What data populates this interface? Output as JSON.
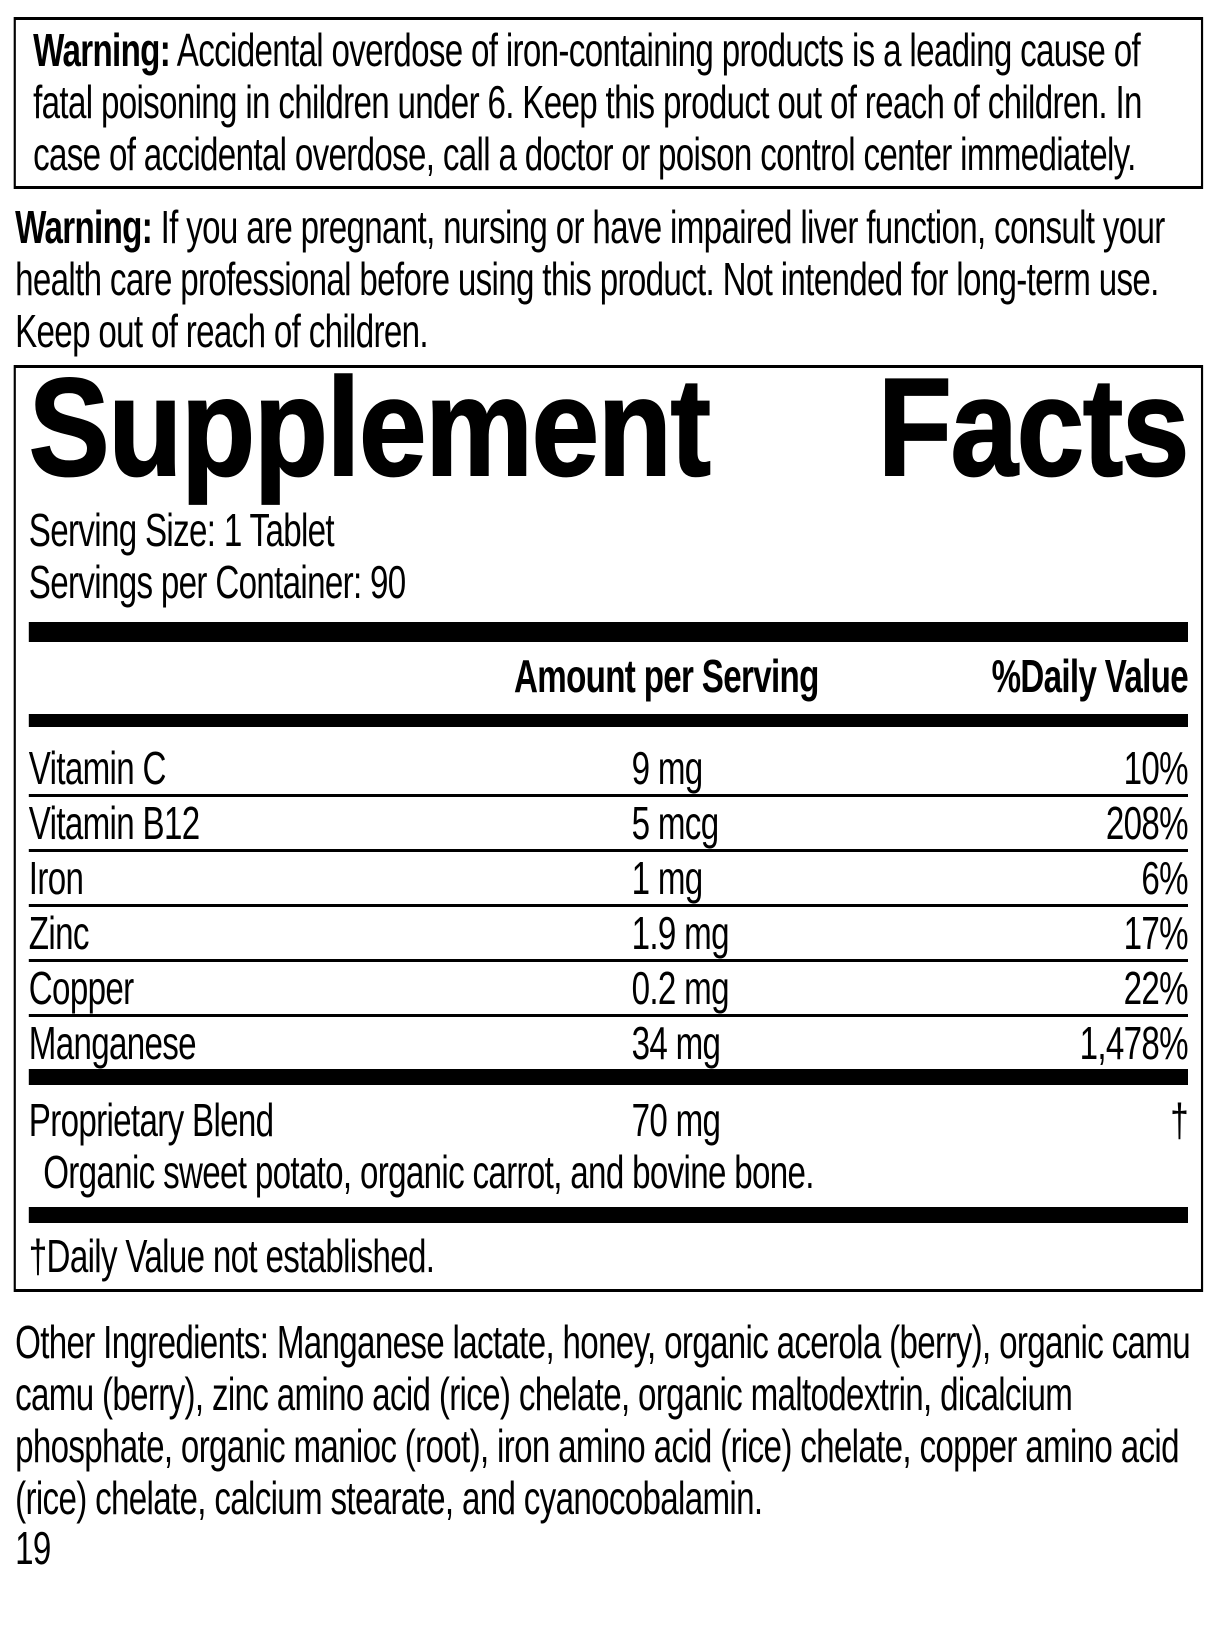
{
  "warning_box": {
    "label": "Warning:",
    "text": "Accidental overdose of iron-containing products is a leading cause of fatal poisoning in children under 6. Keep this product out of reach of children. In case of accidental overdose, call a doctor or poison control center immediately."
  },
  "warning_2": {
    "label": "Warning:",
    "text": "If you are pregnant, nursing or have impaired liver function, consult your health care professional before using this product. Not intended for long-term use. Keep out of reach of children."
  },
  "supplement_facts": {
    "title_left": "Supplement",
    "title_right": "Facts",
    "serving_size": "Serving Size: 1 Tablet",
    "servings_per_container": "Servings per Container: 90",
    "columns": {
      "amount": "Amount per Serving",
      "daily_value": "%Daily Value"
    },
    "nutrients": [
      {
        "name": "Vitamin C",
        "amount": "9 mg",
        "dv": "10%"
      },
      {
        "name": "Vitamin B12",
        "amount": "5 mcg",
        "dv": "208%"
      },
      {
        "name": "Iron",
        "amount": "1 mg",
        "dv": "6%"
      },
      {
        "name": "Zinc",
        "amount": "1.9 mg",
        "dv": "17%"
      },
      {
        "name": "Copper",
        "amount": "0.2 mg",
        "dv": "22%"
      },
      {
        "name": "Manganese",
        "amount": "34 mg",
        "dv": "1,478%"
      }
    ],
    "blend": {
      "name": "Proprietary Blend",
      "amount": "70 mg",
      "dv": "†",
      "description": "Organic sweet potato, organic carrot, and bovine bone."
    },
    "footnote": "†Daily Value not established."
  },
  "other_ingredients": {
    "label": "Other Ingredients:",
    "text": "Manganese lactate, honey, organic acerola (berry), organic camu camu (berry), zinc amino acid (rice) chelate, organic maltodextrin, dicalcium phosphate, organic manioc (root), iron amino acid (rice) chelate, copper amino acid (rice) chelate, calcium stearate, and cyanocobalamin."
  },
  "page": {
    "number": "19"
  }
}
